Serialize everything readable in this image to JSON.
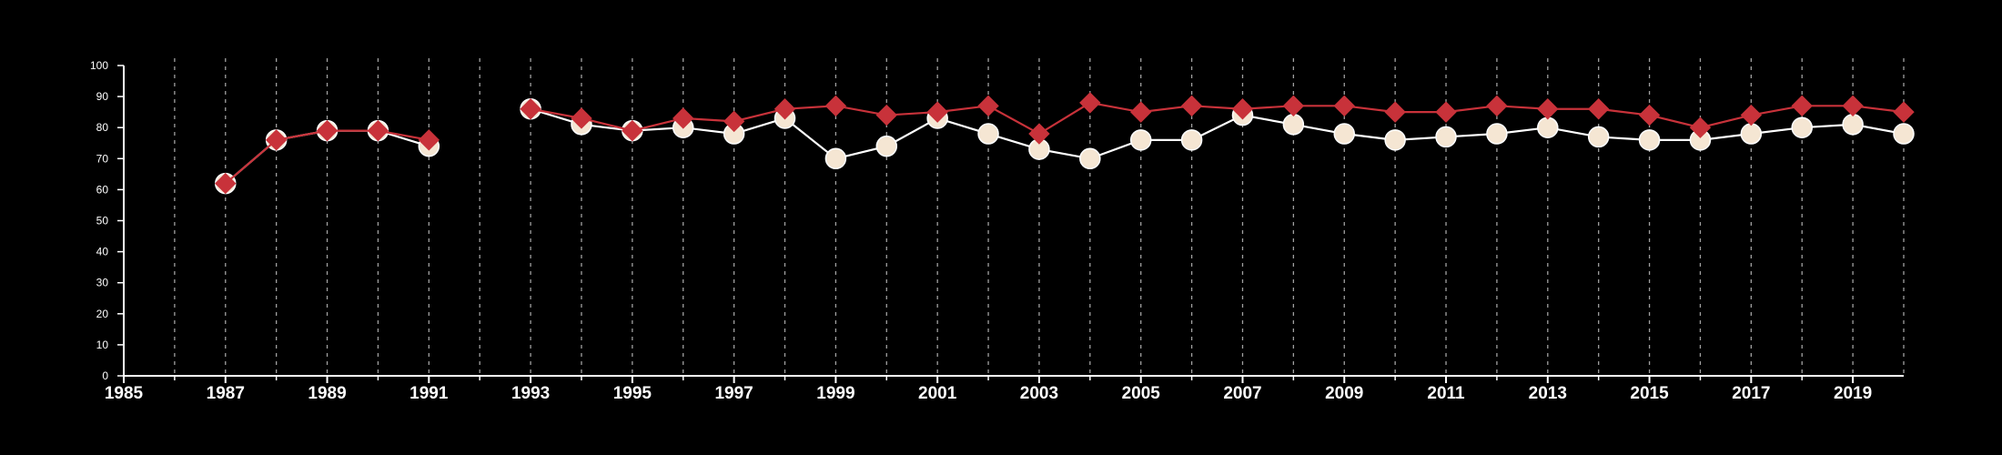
{
  "chart_data": {
    "type": "line",
    "title": "",
    "xlabel": "",
    "ylabel": "",
    "xlim": [
      1985,
      2020
    ],
    "ylim": [
      0,
      100
    ],
    "x_ticks": [
      1985,
      1987,
      1989,
      1991,
      1993,
      1995,
      1997,
      1999,
      2001,
      2003,
      2005,
      2007,
      2009,
      2011,
      2013,
      2015,
      2017,
      2019
    ],
    "x_tick_labels": [
      "1985",
      "1987",
      "1989",
      "1991",
      "1993",
      "1995",
      "1997",
      "1999",
      "2001",
      "2003",
      "2005",
      "2007",
      "2009",
      "2011",
      "2013",
      "2015",
      "2017",
      "2019"
    ],
    "y_ticks": [
      0,
      10,
      20,
      30,
      40,
      50,
      60,
      70,
      80,
      90,
      100
    ],
    "y_tick_labels": [
      "0",
      "10",
      "20",
      "30",
      "40",
      "50",
      "60",
      "70",
      "80",
      "90",
      "100"
    ],
    "grid": "vertical dashed at every year",
    "legend": "none",
    "x": [
      1987,
      1988,
      1989,
      1990,
      1991,
      1992,
      1993,
      1994,
      1995,
      1996,
      1997,
      1998,
      1999,
      2000,
      2001,
      2002,
      2003,
      2004,
      2005,
      2006,
      2007,
      2008,
      2009,
      2010,
      2011,
      2012,
      2013,
      2014,
      2015,
      2016,
      2017,
      2018,
      2019,
      2020
    ],
    "series": [
      {
        "marker": "circle",
        "color": "#f5e6d3",
        "line_color": "#ffffff",
        "values": [
          62,
          76,
          79,
          79,
          74,
          null,
          86,
          81,
          79,
          80,
          78,
          83,
          70,
          74,
          83,
          78,
          73,
          70,
          76,
          76,
          84,
          81,
          78,
          76,
          77,
          78,
          80,
          77,
          76,
          76,
          78,
          80,
          81,
          78
        ]
      },
      {
        "marker": "diamond",
        "color": "#c8323a",
        "line_color": "#c8323a",
        "values": [
          62,
          76,
          79,
          79,
          76,
          null,
          86,
          83,
          79,
          83,
          82,
          86,
          87,
          84,
          85,
          87,
          78,
          88,
          85,
          87,
          86,
          87,
          87,
          85,
          85,
          87,
          86,
          86,
          84,
          80,
          84,
          87,
          87,
          85
        ]
      }
    ]
  }
}
